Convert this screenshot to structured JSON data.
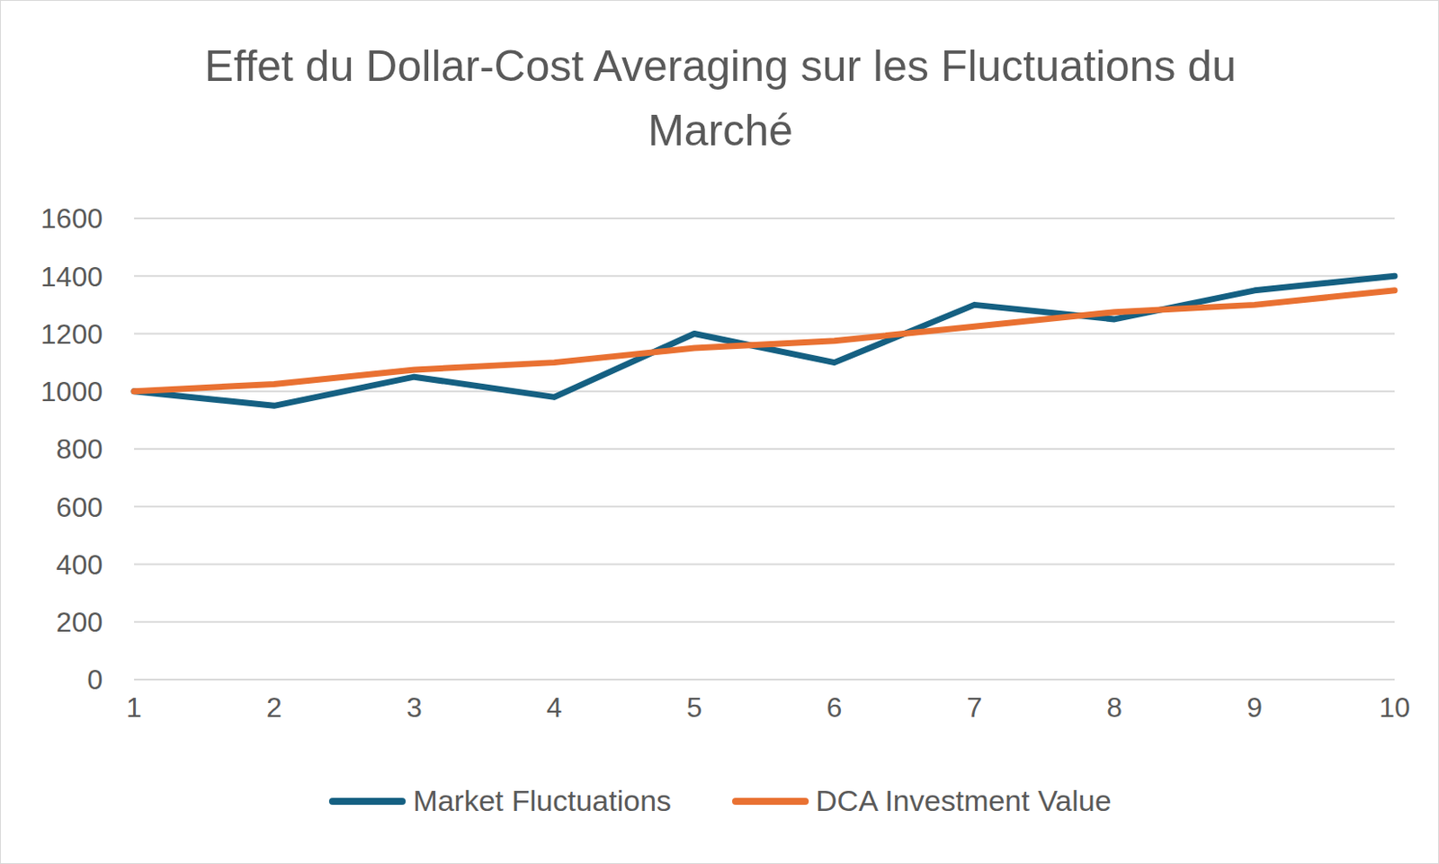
{
  "chart_data": {
    "type": "line",
    "title": "Effet du Dollar-Cost Averaging sur les Fluctuations du Marché",
    "categories": [
      "1",
      "2",
      "3",
      "4",
      "5",
      "6",
      "7",
      "8",
      "9",
      "10"
    ],
    "series": [
      {
        "name": "Market Fluctuations",
        "color": "#156082",
        "values": [
          1000,
          950,
          1050,
          980,
          1200,
          1100,
          1300,
          1250,
          1350,
          1400
        ]
      },
      {
        "name": "DCA Investment Value",
        "color": "#E97132",
        "values": [
          1000,
          1025,
          1075,
          1100,
          1150,
          1175,
          1225,
          1275,
          1300,
          1350
        ]
      }
    ],
    "ylim": [
      0,
      1600
    ],
    "yticks": [
      0,
      200,
      400,
      600,
      800,
      1000,
      1200,
      1400,
      1600
    ],
    "grid": true,
    "legend": "bottom"
  }
}
